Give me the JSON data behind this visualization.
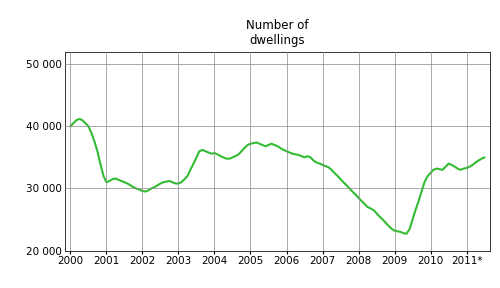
{
  "title": "Number of\ndwellings",
  "title_fontsize": 8.5,
  "line_color": "#33bb33",
  "line_width": 1.5,
  "background_color": "#ffffff",
  "grid_color": "#888888",
  "ylim": [
    20000,
    52000
  ],
  "yticks": [
    20000,
    30000,
    40000,
    50000
  ],
  "ytick_labels": [
    "20 000",
    "30 000",
    "40 000",
    "50 000"
  ],
  "xlabel_ticks": [
    "2000",
    "2001",
    "2002",
    "2003",
    "2004",
    "2005",
    "2006",
    "2007",
    "2008",
    "2009",
    "2010",
    "2011*"
  ],
  "x_values": [
    0.0,
    0.08,
    0.17,
    0.25,
    0.33,
    0.42,
    0.5,
    0.58,
    0.67,
    0.75,
    0.83,
    0.92,
    1.0,
    1.08,
    1.17,
    1.25,
    1.33,
    1.42,
    1.5,
    1.58,
    1.67,
    1.75,
    1.83,
    1.92,
    2.0,
    2.08,
    2.17,
    2.25,
    2.33,
    2.42,
    2.5,
    2.58,
    2.67,
    2.75,
    2.83,
    2.92,
    3.0,
    3.08,
    3.17,
    3.25,
    3.33,
    3.42,
    3.5,
    3.58,
    3.67,
    3.75,
    3.83,
    3.92,
    4.0,
    4.08,
    4.17,
    4.25,
    4.33,
    4.42,
    4.5,
    4.58,
    4.67,
    4.75,
    4.83,
    4.92,
    5.0,
    5.08,
    5.17,
    5.25,
    5.33,
    5.42,
    5.5,
    5.58,
    5.67,
    5.75,
    5.83,
    5.92,
    6.0,
    6.08,
    6.17,
    6.25,
    6.33,
    6.42,
    6.5,
    6.58,
    6.67,
    6.75,
    6.83,
    6.92,
    7.0,
    7.08,
    7.17,
    7.25,
    7.33,
    7.42,
    7.5,
    7.58,
    7.67,
    7.75,
    7.83,
    7.92,
    8.0,
    8.08,
    8.17,
    8.25,
    8.33,
    8.42,
    8.5,
    8.58,
    8.67,
    8.75,
    8.83,
    8.92,
    9.0,
    9.08,
    9.17,
    9.25,
    9.33,
    9.42,
    9.5,
    9.58,
    9.67,
    9.75,
    9.83,
    9.92,
    10.0,
    10.08,
    10.17,
    10.25,
    10.33,
    10.42,
    10.5,
    10.58,
    10.67,
    10.75,
    10.83,
    10.92,
    11.0,
    11.08,
    11.17,
    11.25,
    11.33,
    11.42,
    11.5
  ],
  "y_values": [
    40000,
    40500,
    41000,
    41200,
    41000,
    40500,
    40000,
    39000,
    37500,
    36000,
    34000,
    32000,
    31000,
    31200,
    31500,
    31600,
    31400,
    31200,
    31000,
    30800,
    30500,
    30200,
    30000,
    29800,
    29600,
    29500,
    29700,
    30000,
    30200,
    30500,
    30800,
    31000,
    31100,
    31200,
    31000,
    30800,
    30800,
    31000,
    31500,
    32000,
    33000,
    34000,
    35000,
    36000,
    36200,
    36000,
    35800,
    35600,
    35700,
    35500,
    35200,
    35000,
    34800,
    34800,
    35000,
    35200,
    35500,
    36000,
    36500,
    37000,
    37200,
    37300,
    37400,
    37200,
    37000,
    36800,
    37000,
    37200,
    37000,
    36800,
    36500,
    36200,
    36000,
    35800,
    35600,
    35500,
    35400,
    35200,
    35000,
    35200,
    35000,
    34500,
    34200,
    34000,
    33800,
    33600,
    33400,
    33000,
    32500,
    32000,
    31500,
    31000,
    30500,
    30000,
    29500,
    29000,
    28500,
    28000,
    27500,
    27000,
    26800,
    26500,
    26000,
    25500,
    25000,
    24500,
    24000,
    23500,
    23200,
    23100,
    23000,
    22800,
    22700,
    23500,
    25000,
    26500,
    28000,
    29500,
    31000,
    32000,
    32500,
    33000,
    33200,
    33100,
    33000,
    33500,
    34000,
    33800,
    33500,
    33200,
    33000,
    33200,
    33300,
    33500,
    33800,
    34200,
    34500,
    34800,
    35000
  ]
}
